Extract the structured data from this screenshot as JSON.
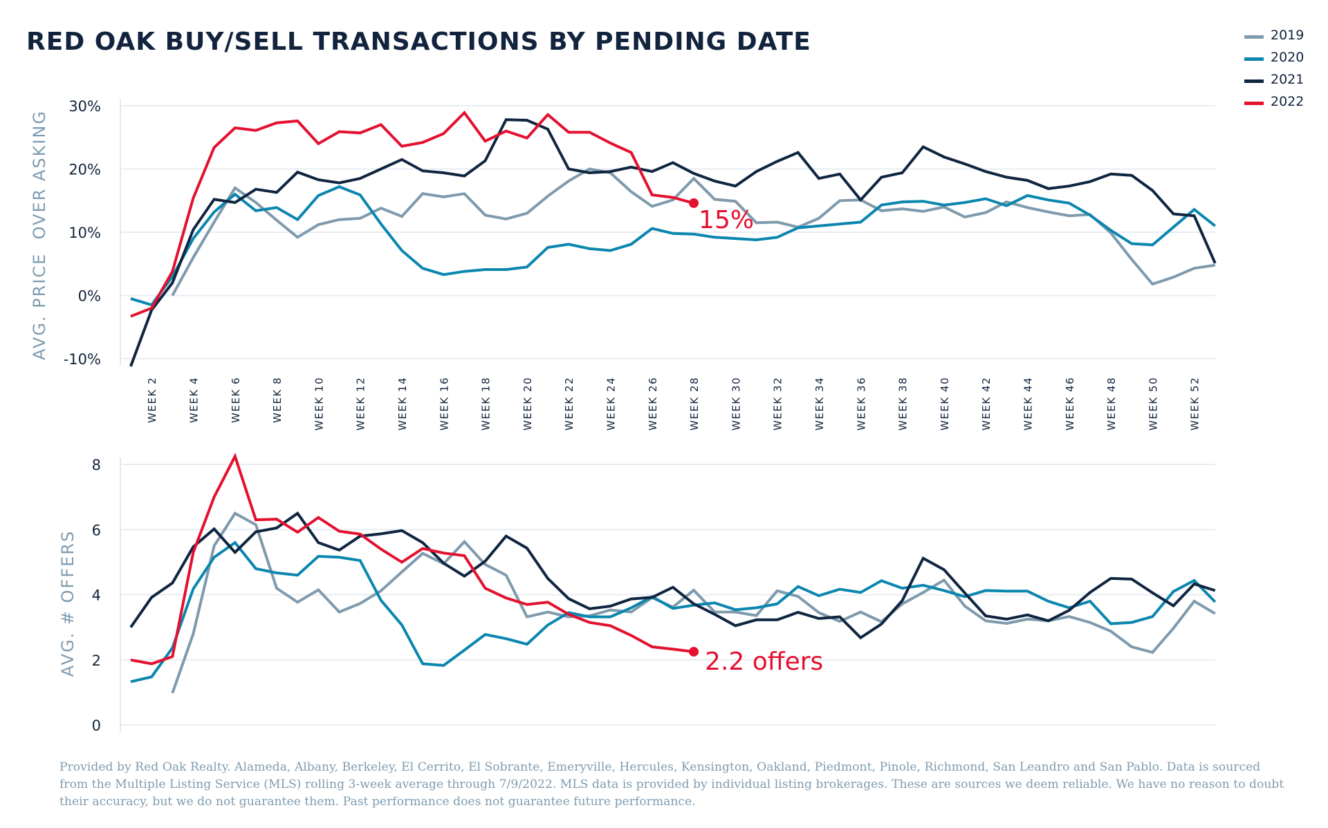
{
  "title": "RED OAK BUY/SELL TRANSACTIONS BY PENDING DATE",
  "legend": [
    {
      "label": "2019",
      "color": "#7f9aad"
    },
    {
      "label": "2020",
      "color": "#0b86ae"
    },
    {
      "label": "2021",
      "color": "#0f2540"
    },
    {
      "label": "2022",
      "color": "#e3112f"
    }
  ],
  "footer": "Provided by Red Oak Realty. Alameda, Albany, Berkeley, El Cerrito, El Sobrante, Emeryville, Hercules, Kensington, Oakland, Piedmont, Pinole, Richmond, San Leandro and San Pablo. Data is sourced from the Multiple Listing Service (MLS) rolling 3-week average through 7/9/2022. MLS data is provided by individual listing brokerages. These are sources we deem reliable. We have no reason to doubt their accuracy, but we do not guarantee them. Past performance does not guarantee future performance.",
  "chart_data": [
    {
      "type": "line",
      "title": "RED OAK BUY/SELL TRANSACTIONS BY PENDING DATE",
      "xlabel": "",
      "ylabel": "AVG. PRICE  OVER ASKING",
      "x": [
        1,
        2,
        3,
        4,
        5,
        6,
        7,
        8,
        9,
        10,
        11,
        12,
        13,
        14,
        15,
        16,
        17,
        18,
        19,
        20,
        21,
        22,
        23,
        24,
        25,
        26,
        27,
        28,
        29,
        30,
        31,
        32,
        33,
        34,
        35,
        36,
        37,
        38,
        39,
        40,
        41,
        42,
        43,
        44,
        45,
        46,
        47,
        48,
        49,
        50,
        51,
        52,
        53
      ],
      "xtick_labels": [
        "WEEK 2",
        "WEEK 4",
        "WEEK 6",
        "WEEK 8",
        "WEEK 10",
        "WEEK 12",
        "WEEK 14",
        "WEEK 16",
        "WEEK 18",
        "WEEK 20",
        "WEEK 22",
        "WEEK 24",
        "WEEK 26",
        "WEEK 28",
        "WEEK 30",
        "WEEK 32",
        "WEEK 34",
        "WEEK 36",
        "WEEK 38",
        "WEEK 40",
        "WEEK 42",
        "WEEK 44",
        "WEEK 46",
        "WEEK 48",
        "WEEK 50",
        "WEEK 52"
      ],
      "xtick_weeks": [
        2,
        4,
        6,
        8,
        10,
        12,
        14,
        16,
        18,
        20,
        22,
        24,
        26,
        28,
        30,
        32,
        34,
        36,
        38,
        40,
        42,
        44,
        46,
        48,
        50,
        52
      ],
      "ytick_labels": [
        "-10%",
        "0%",
        "10%",
        "20%",
        "30%"
      ],
      "yticks": [
        -10,
        0,
        10,
        20,
        30
      ],
      "ylim": [
        -10,
        30
      ],
      "grid": true,
      "legend_position": "top-right",
      "series": [
        {
          "name": "2019",
          "start_week": 3,
          "values": [
            0,
            6.0,
            11.6,
            17.0,
            14.7,
            11.9,
            9.2,
            11.2,
            12.0,
            12.2,
            13.8,
            12.5,
            16.1,
            15.6,
            16.1,
            12.7,
            12.1,
            13.0,
            15.7,
            18.1,
            20.0,
            19.4,
            16.4,
            14.1,
            15.1,
            18.5,
            15.2,
            14.9,
            11.5,
            11.6,
            10.8,
            12.2,
            15.0,
            15.1,
            13.4,
            13.7,
            13.3,
            14.0,
            12.4,
            13.1,
            14.8,
            13.9,
            13.2,
            12.6,
            12.8,
            9.9,
            5.7,
            1.8,
            2.9,
            4.3,
            4.8
          ]
        },
        {
          "name": "2020",
          "start_week": 1,
          "values": [
            -0.5,
            -1.5,
            3.0,
            9.0,
            13.2,
            16.0,
            13.4,
            13.9,
            12.0,
            15.8,
            17.2,
            15.9,
            11.3,
            7.1,
            4.3,
            3.3,
            3.8,
            4.1,
            4.1,
            4.5,
            7.6,
            8.1,
            7.4,
            7.1,
            8.1,
            10.6,
            9.8,
            9.7,
            9.2,
            9.0,
            8.8,
            9.2,
            10.7,
            11.0,
            11.3,
            11.6,
            14.3,
            14.8,
            14.9,
            14.3,
            14.7,
            15.3,
            14.2,
            15.8,
            15.1,
            14.6,
            12.7,
            10.3,
            8.2,
            8.0,
            10.8,
            13.6,
            11.0
          ]
        },
        {
          "name": "2021",
          "start_week": 1,
          "values": [
            -11.2,
            -2.3,
            2.0,
            10.4,
            15.2,
            14.7,
            16.8,
            16.3,
            19.5,
            18.3,
            17.8,
            18.5,
            20.0,
            21.5,
            19.7,
            19.4,
            18.9,
            21.3,
            27.8,
            27.7,
            26.3,
            20.0,
            19.4,
            19.6,
            20.3,
            19.6,
            21.0,
            19.3,
            18.1,
            17.3,
            19.6,
            21.2,
            22.6,
            18.5,
            19.2,
            15.1,
            18.7,
            19.4,
            23.5,
            21.9,
            20.8,
            19.6,
            18.7,
            18.2,
            16.9,
            17.3,
            18.0,
            19.2,
            19.0,
            16.6,
            12.9,
            12.6,
            5.1
          ]
        },
        {
          "name": "2022",
          "start_week": 1,
          "values": [
            -3.3,
            -2.0,
            3.8,
            15.4,
            23.4,
            26.5,
            26.1,
            27.3,
            27.6,
            24.0,
            25.9,
            25.7,
            27.0,
            23.6,
            24.2,
            25.6,
            28.9,
            24.4,
            26.0,
            24.9,
            28.6,
            25.8,
            25.8,
            24.1,
            22.6,
            15.9,
            15.5,
            14.6
          ]
        }
      ],
      "annotations": [
        {
          "series": "2022",
          "week": 28,
          "text": "15%"
        }
      ]
    },
    {
      "type": "line",
      "title": "",
      "xlabel": "",
      "ylabel": "AVG. # OFFERS",
      "x": [
        1,
        2,
        3,
        4,
        5,
        6,
        7,
        8,
        9,
        10,
        11,
        12,
        13,
        14,
        15,
        16,
        17,
        18,
        19,
        20,
        21,
        22,
        23,
        24,
        25,
        26,
        27,
        28,
        29,
        30,
        31,
        32,
        33,
        34,
        35,
        36,
        37,
        38,
        39,
        40,
        41,
        42,
        43,
        44,
        45,
        46,
        47,
        48,
        49,
        50,
        51,
        52,
        53
      ],
      "ytick_labels": [
        "0",
        "2",
        "4",
        "6",
        "8"
      ],
      "yticks": [
        0,
        2,
        4,
        6,
        8
      ],
      "ylim": [
        0,
        8
      ],
      "grid": true,
      "series": [
        {
          "name": "2019",
          "start_week": 3,
          "values": [
            0.98,
            2.8,
            5.5,
            6.5,
            6.15,
            4.2,
            3.77,
            4.15,
            3.47,
            3.73,
            4.12,
            4.7,
            5.27,
            4.95,
            5.63,
            4.93,
            4.6,
            3.32,
            3.47,
            3.32,
            3.35,
            3.53,
            3.47,
            3.91,
            3.62,
            4.14,
            3.47,
            3.47,
            3.36,
            4.12,
            3.95,
            3.45,
            3.18,
            3.47,
            3.17,
            3.72,
            4.07,
            4.45,
            3.65,
            3.2,
            3.12,
            3.25,
            3.2,
            3.33,
            3.15,
            2.88,
            2.4,
            2.23,
            2.97,
            3.8,
            3.42
          ]
        },
        {
          "name": "2020",
          "start_week": 1,
          "values": [
            1.33,
            1.48,
            2.37,
            4.18,
            5.15,
            5.6,
            4.8,
            4.67,
            4.6,
            5.18,
            5.15,
            5.05,
            3.83,
            3.07,
            1.88,
            1.83,
            2.3,
            2.78,
            2.65,
            2.48,
            3.07,
            3.45,
            3.32,
            3.32,
            3.6,
            3.94,
            3.58,
            3.68,
            3.75,
            3.54,
            3.6,
            3.72,
            4.25,
            3.97,
            4.17,
            4.07,
            4.43,
            4.2,
            4.29,
            4.13,
            3.94,
            4.13,
            4.11,
            4.11,
            3.8,
            3.6,
            3.8,
            3.11,
            3.15,
            3.33,
            4.1,
            4.44,
            3.78
          ]
        },
        {
          "name": "2021",
          "start_week": 1,
          "values": [
            3.0,
            3.92,
            4.36,
            5.47,
            6.02,
            5.3,
            5.93,
            6.05,
            6.5,
            5.6,
            5.37,
            5.8,
            5.87,
            5.97,
            5.6,
            4.97,
            4.57,
            5.03,
            5.8,
            5.43,
            4.5,
            3.88,
            3.57,
            3.65,
            3.87,
            3.92,
            4.23,
            3.72,
            3.4,
            3.05,
            3.23,
            3.23,
            3.46,
            3.27,
            3.32,
            2.68,
            3.1,
            3.82,
            5.12,
            4.77,
            4.05,
            3.35,
            3.25,
            3.38,
            3.2,
            3.52,
            4.07,
            4.5,
            4.48,
            4.06,
            3.66,
            4.33,
            4.13
          ]
        },
        {
          "name": "2022",
          "start_week": 1,
          "values": [
            2.0,
            1.88,
            2.1,
            5.3,
            7.0,
            8.25,
            6.3,
            6.32,
            5.92,
            6.37,
            5.95,
            5.86,
            5.4,
            5.0,
            5.42,
            5.28,
            5.2,
            4.2,
            3.9,
            3.7,
            3.77,
            3.4,
            3.15,
            3.05,
            2.75,
            2.4,
            2.33,
            2.25
          ]
        }
      ],
      "annotations": [
        {
          "series": "2022",
          "week": 28,
          "text": "2.2 offers"
        }
      ]
    }
  ]
}
